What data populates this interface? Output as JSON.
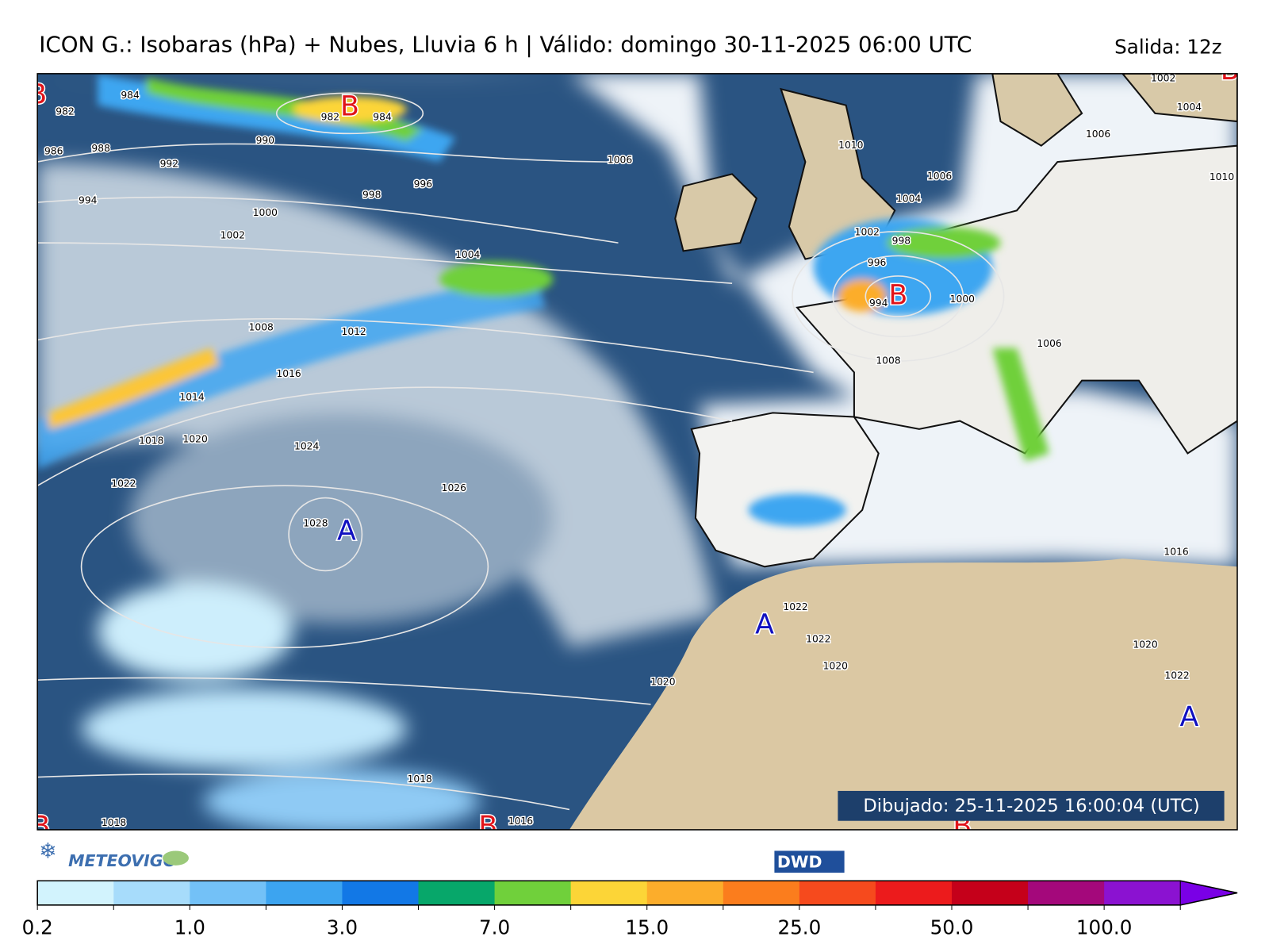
{
  "header": {
    "title": "ICON G.: Isobaras (hPa) + Nubes, Lluvia 6 h | Válido: domingo 30-11-2025 06:00 UTC",
    "run": "Salida: 12z"
  },
  "map": {
    "drawn": "Dibujado: 25-11-2025 16:00:04 (UTC)",
    "centers": [
      "B",
      "B",
      "B",
      "B",
      "A",
      "A",
      "A",
      "B",
      "B",
      "B"
    ],
    "isobar_labels": [
      "984",
      "982",
      "986",
      "988",
      "992",
      "990",
      "994",
      "996",
      "998",
      "1000",
      "1002",
      "1004",
      "1008",
      "1012",
      "1016",
      "1014",
      "1018",
      "1020",
      "1024",
      "1022",
      "1026",
      "1028",
      "982",
      "984",
      "1006",
      "1010",
      "1006",
      "1004",
      "1002",
      "998",
      "996",
      "994",
      "1000",
      "1008",
      "1006",
      "1002",
      "1004",
      "1006",
      "1010",
      "1016",
      "1022",
      "1022",
      "1020",
      "1020",
      "1020",
      "1022",
      "1018",
      "1018",
      "1016"
    ]
  },
  "logos": {
    "left": "METEOVIGO",
    "right": "DWD"
  },
  "colorbar": {
    "colors": [
      "#d2f3fd",
      "#a7dcfb",
      "#73c1f7",
      "#3ca4f0",
      "#1278e6",
      "#07a76a",
      "#70d03b",
      "#fcd537",
      "#fcad2b",
      "#fb7d1d",
      "#f64a1d",
      "#ec1b1c",
      "#c5001a",
      "#a4087b",
      "#8b12d1"
    ],
    "over_color": "#7a00e6",
    "tick_labels": [
      "0.2",
      "1.0",
      "3.0",
      "7.0",
      "15.0",
      "25.0",
      "50.0",
      "100.0"
    ]
  }
}
